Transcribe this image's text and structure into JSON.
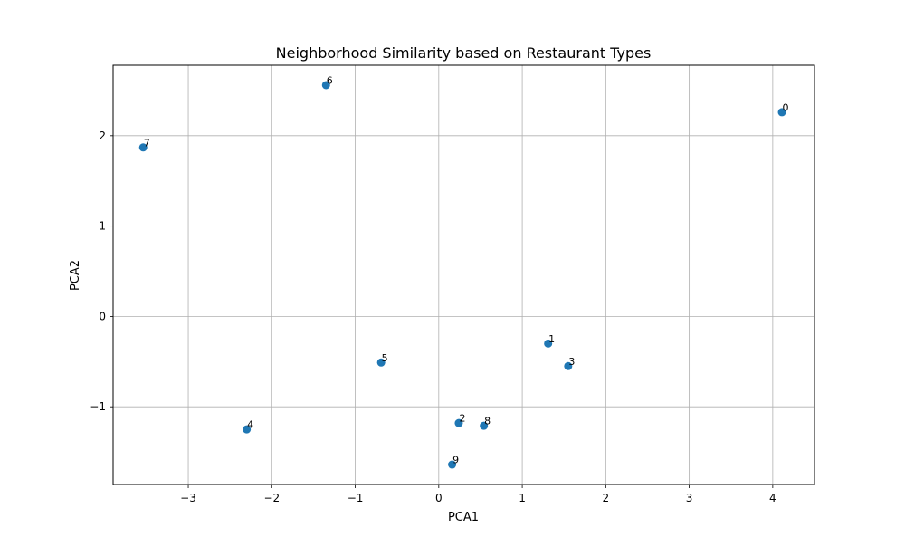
{
  "chart_data": {
    "type": "scatter",
    "title": "Neighborhood Similarity based on Restaurant Types",
    "xlabel": "PCA1",
    "ylabel": "PCA2",
    "xlim": [
      -3.9,
      4.5
    ],
    "ylim": [
      -1.86,
      2.78
    ],
    "xticks": [
      -3,
      -2,
      -1,
      0,
      1,
      2,
      3,
      4
    ],
    "yticks": [
      -1,
      0,
      1,
      2
    ],
    "grid": true,
    "legend": "none",
    "marker_color": "#1f77b4",
    "grid_color": "#b0b0b0",
    "points": [
      {
        "label": "0",
        "x": 4.11,
        "y": 2.26
      },
      {
        "label": "1",
        "x": 1.31,
        "y": -0.3
      },
      {
        "label": "2",
        "x": 0.24,
        "y": -1.18
      },
      {
        "label": "3",
        "x": 1.55,
        "y": -0.55
      },
      {
        "label": "4",
        "x": -2.3,
        "y": -1.25
      },
      {
        "label": "5",
        "x": -0.69,
        "y": -0.51
      },
      {
        "label": "6",
        "x": -1.35,
        "y": 2.56
      },
      {
        "label": "7",
        "x": -3.54,
        "y": 1.87
      },
      {
        "label": "8",
        "x": 0.54,
        "y": -1.21
      },
      {
        "label": "9",
        "x": 0.16,
        "y": -1.64
      }
    ]
  }
}
